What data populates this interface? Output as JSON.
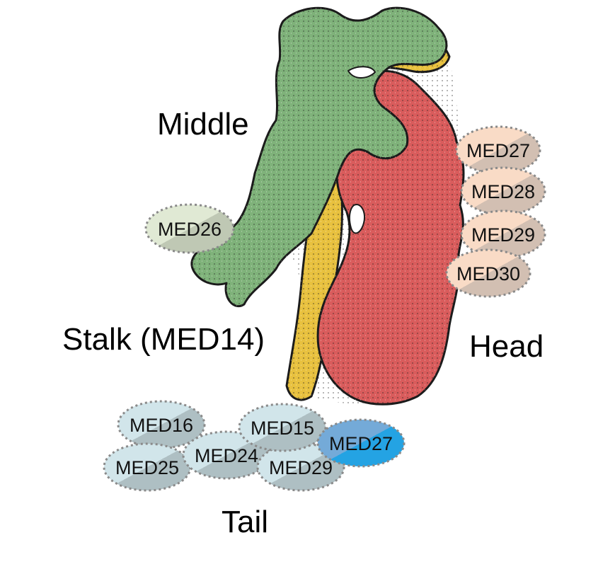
{
  "regions": {
    "middle": "Middle",
    "stalk": "Stalk (MED14)",
    "head": "Head",
    "tail": "Tail"
  },
  "subunits": {
    "middle": [
      "MED26"
    ],
    "head": [
      "MED27",
      "MED28",
      "MED29",
      "MED30"
    ],
    "tail": [
      "MED16",
      "MED15",
      "MED27",
      "MED25",
      "MED24",
      "MED29"
    ]
  },
  "colors": {
    "middle_protein": "#7fb27a",
    "stalk_protein": "#e8c13f",
    "head_protein": "#d95c5c",
    "middle_bubble": "#dfe8d3",
    "head_bubble": "#f8d9c3",
    "tail_bubble": "#cfe3e8",
    "tail_highlight": "#2a9ad8"
  }
}
